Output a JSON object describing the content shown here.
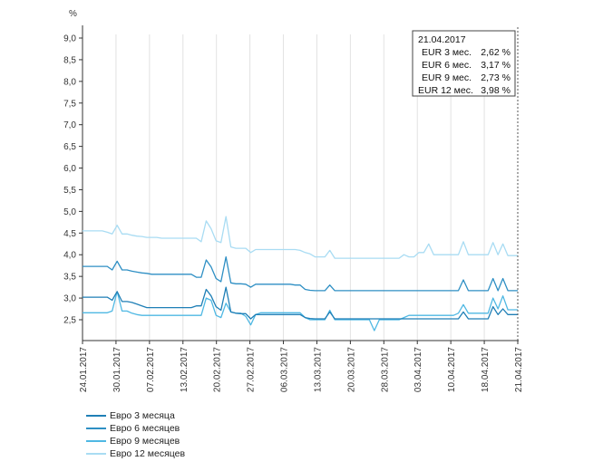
{
  "chart_data": {
    "type": "line",
    "ylabel": "%",
    "ylim": [
      2.0,
      9.0
    ],
    "y_ticks": [
      "9,0",
      "8,5",
      "8,0",
      "7,5",
      "7,0",
      "6,5",
      "6,0",
      "5,5",
      "5,0",
      "4,5",
      "4,0",
      "3,5",
      "3,0",
      "2,5"
    ],
    "x_tick_labels": [
      "24.01.2017",
      "30.01.2017",
      "07.02.2017",
      "13.02.2017",
      "20.02.2017",
      "27.02.2017",
      "06.03.2017",
      "13.03.2017",
      "20.03.2017",
      "28.03.2017",
      "03.04.2017",
      "10.04.2017",
      "18.04.2017",
      "21.04.2017"
    ],
    "grid": "vertical",
    "legend_position": "bottom-left",
    "x": [
      0,
      4,
      5,
      6,
      7,
      8,
      9,
      10,
      11,
      12,
      13,
      14,
      15,
      16,
      17,
      18,
      19,
      20,
      21,
      22,
      23,
      24,
      25,
      26,
      27,
      28,
      29,
      30,
      31,
      32,
      33,
      34,
      35,
      36,
      37,
      38,
      39,
      40,
      41,
      42,
      43,
      44,
      45,
      46,
      47,
      48,
      49,
      50,
      51,
      52,
      53,
      54,
      55,
      56,
      57,
      58,
      59,
      60,
      61,
      62,
      63,
      64,
      65,
      66,
      67,
      68,
      69,
      70,
      71,
      72,
      73,
      74,
      75,
      76,
      77,
      78,
      79,
      80,
      81,
      82,
      83,
      84,
      85,
      86,
      87,
      88
    ],
    "series": [
      {
        "name": "Евро 3 месяца",
        "color": "#1f7fb6",
        "values": [
          3.02,
          3.02,
          3.02,
          2.95,
          3.15,
          2.92,
          2.92,
          2.9,
          2.86,
          2.82,
          2.78,
          2.78,
          2.78,
          2.78,
          2.78,
          2.78,
          2.78,
          2.78,
          2.78,
          2.78,
          2.82,
          2.82,
          3.2,
          3.05,
          2.8,
          2.72,
          3.25,
          2.68,
          2.65,
          2.64,
          2.64,
          2.52,
          2.62,
          2.62,
          2.62,
          2.62,
          2.62,
          2.62,
          2.62,
          2.62,
          2.62,
          2.62,
          2.55,
          2.53,
          2.52,
          2.52,
          2.52,
          2.68,
          2.52,
          2.52,
          2.52,
          2.52,
          2.52,
          2.52,
          2.52,
          2.52,
          2.52,
          2.52,
          2.52,
          2.52,
          2.52,
          2.52,
          2.52,
          2.52,
          2.52,
          2.52,
          2.52,
          2.52,
          2.52,
          2.52,
          2.52,
          2.52,
          2.52,
          2.52,
          2.68,
          2.52,
          2.52,
          2.52,
          2.52,
          2.52,
          2.8,
          2.62,
          2.75,
          2.62,
          2.62,
          2.62
        ]
      },
      {
        "name": "Евро 6 месяцев",
        "color": "#2e8fc4",
        "values": [
          3.73,
          3.73,
          3.73,
          3.65,
          3.85,
          3.65,
          3.65,
          3.62,
          3.6,
          3.58,
          3.57,
          3.55,
          3.55,
          3.55,
          3.55,
          3.55,
          3.55,
          3.55,
          3.55,
          3.55,
          3.48,
          3.48,
          3.88,
          3.72,
          3.45,
          3.38,
          3.95,
          3.35,
          3.33,
          3.33,
          3.32,
          3.25,
          3.32,
          3.32,
          3.32,
          3.32,
          3.32,
          3.32,
          3.32,
          3.32,
          3.3,
          3.3,
          3.2,
          3.18,
          3.17,
          3.17,
          3.17,
          3.3,
          3.17,
          3.17,
          3.17,
          3.17,
          3.17,
          3.17,
          3.17,
          3.17,
          3.17,
          3.17,
          3.17,
          3.17,
          3.17,
          3.17,
          3.17,
          3.17,
          3.17,
          3.17,
          3.17,
          3.17,
          3.17,
          3.17,
          3.17,
          3.17,
          3.17,
          3.17,
          3.42,
          3.17,
          3.17,
          3.17,
          3.17,
          3.17,
          3.45,
          3.17,
          3.45,
          3.17,
          3.17,
          3.17
        ]
      },
      {
        "name": "Евро 9 месяцев",
        "color": "#4fb8e3",
        "values": [
          2.66,
          2.66,
          2.66,
          2.7,
          3.15,
          2.7,
          2.7,
          2.65,
          2.62,
          2.6,
          2.6,
          2.6,
          2.6,
          2.6,
          2.6,
          2.6,
          2.6,
          2.6,
          2.6,
          2.6,
          2.6,
          2.6,
          3.0,
          2.95,
          2.6,
          2.55,
          2.88,
          2.68,
          2.65,
          2.65,
          2.58,
          2.38,
          2.62,
          2.66,
          2.66,
          2.66,
          2.66,
          2.66,
          2.66,
          2.66,
          2.66,
          2.66,
          2.55,
          2.5,
          2.5,
          2.5,
          2.5,
          2.72,
          2.5,
          2.5,
          2.5,
          2.5,
          2.5,
          2.5,
          2.5,
          2.5,
          2.25,
          2.5,
          2.5,
          2.5,
          2.5,
          2.5,
          2.55,
          2.6,
          2.6,
          2.6,
          2.6,
          2.6,
          2.6,
          2.6,
          2.6,
          2.6,
          2.6,
          2.65,
          2.85,
          2.65,
          2.65,
          2.65,
          2.65,
          2.65,
          3.0,
          2.75,
          3.05,
          2.73,
          2.73,
          2.73
        ]
      },
      {
        "name": "Евро 12 месяцев",
        "color": "#a9dcf3",
        "values": [
          4.55,
          4.55,
          4.52,
          4.48,
          4.68,
          4.48,
          4.48,
          4.45,
          4.43,
          4.42,
          4.4,
          4.4,
          4.4,
          4.38,
          4.38,
          4.38,
          4.38,
          4.38,
          4.38,
          4.38,
          4.38,
          4.3,
          4.78,
          4.6,
          4.32,
          4.28,
          4.88,
          4.18,
          4.15,
          4.15,
          4.15,
          4.05,
          4.12,
          4.12,
          4.12,
          4.12,
          4.12,
          4.12,
          4.12,
          4.12,
          4.12,
          4.1,
          4.05,
          4.02,
          3.95,
          3.95,
          3.95,
          4.1,
          3.92,
          3.92,
          3.92,
          3.92,
          3.92,
          3.92,
          3.92,
          3.92,
          3.92,
          3.92,
          3.92,
          3.92,
          3.92,
          3.92,
          4.0,
          3.95,
          3.95,
          4.05,
          4.05,
          4.25,
          4.0,
          4.0,
          4.0,
          4.0,
          4.0,
          4.0,
          4.3,
          4.0,
          4.0,
          4.0,
          4.0,
          4.0,
          4.28,
          4.0,
          4.25,
          3.98,
          3.98,
          3.98
        ]
      }
    ],
    "tooltip": {
      "date": "21.04.2017",
      "rows": [
        {
          "label": "EUR 3 мес.",
          "value": "2,62 %"
        },
        {
          "label": "EUR 6 мес.",
          "value": "3,17 %"
        },
        {
          "label": "EUR 9 мес.",
          "value": "2,73 %"
        },
        {
          "label": "EUR 12 мес.",
          "value": "3,98 %"
        }
      ]
    },
    "legend": [
      {
        "label": "Евро 3 месяца",
        "color": "#1f7fb6"
      },
      {
        "label": "Евро 6 месяцев",
        "color": "#2e8fc4"
      },
      {
        "label": "Евро 9 месяцев",
        "color": "#4fb8e3"
      },
      {
        "label": "Евро 12 месяцев",
        "color": "#a9dcf3"
      }
    ]
  }
}
